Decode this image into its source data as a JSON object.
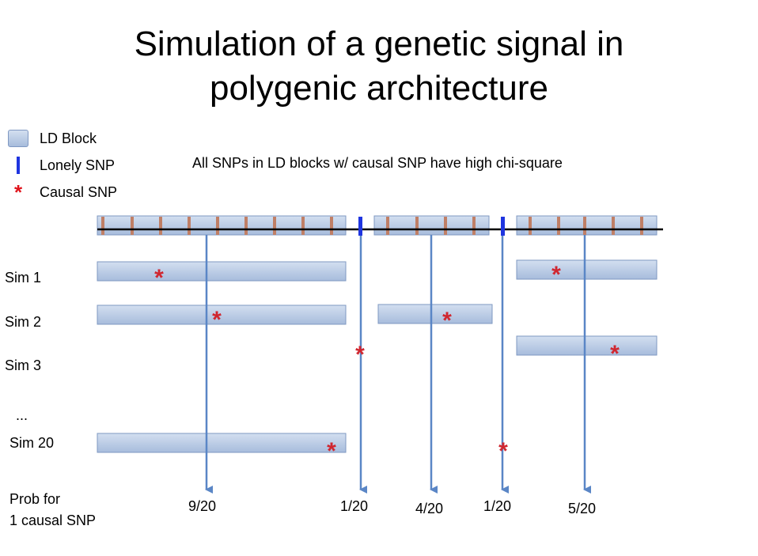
{
  "title_line1": "Simulation of a genetic signal in",
  "title_line2": "polygenic architecture",
  "legend": {
    "ld_block": "LD Block",
    "lonely_snp": "Lonely SNP",
    "causal_snp": "Causal SNP"
  },
  "note": "All SNPs in LD blocks w/ causal SNP have high chi-square",
  "rows": {
    "sim1": "Sim 1",
    "sim2": "Sim 2",
    "sim3": "Sim 3",
    "ellipsis": "...",
    "sim20": "Sim 20",
    "prob_line1": "Prob for",
    "prob_line2": "1 causal SNP"
  },
  "probabilities": [
    "9/20",
    "1/20",
    "4/20",
    "1/20",
    "5/20"
  ],
  "colors": {
    "ld_fill_top": "#d3dff0",
    "ld_fill_bottom": "#a7bcdc",
    "ld_border": "#7f98c2",
    "snp_tick": "#c07f66",
    "lonely_snp": "#1f35e0",
    "causal_star": "#d0262f",
    "arrow": "#5a86c6"
  }
}
